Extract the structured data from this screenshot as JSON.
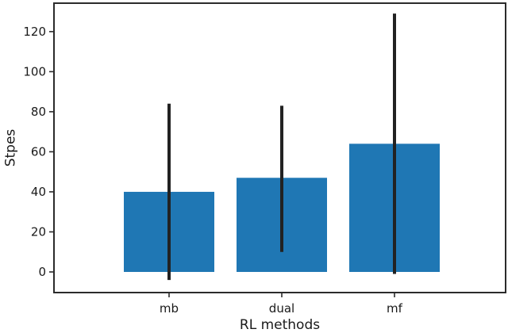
{
  "figure": {
    "background": "#ffffff"
  },
  "chart_data": {
    "type": "bar",
    "categories": [
      "mb",
      "dual",
      "mf"
    ],
    "values": [
      40,
      47,
      64
    ],
    "error_low": [
      -4,
      10,
      -1
    ],
    "error_high": [
      84,
      83,
      129
    ],
    "title": "",
    "xlabel": "RL methods",
    "ylabel": "Stpes",
    "yticks": [
      0,
      20,
      40,
      60,
      80,
      100,
      120
    ],
    "ylim": [
      -10.3,
      134.2
    ],
    "grid": false,
    "legend": "none",
    "bar_color": "#1f77b4",
    "error_color": "#222222",
    "axis_color": "#2b2b2b",
    "text_color": "#1a1a1a"
  }
}
